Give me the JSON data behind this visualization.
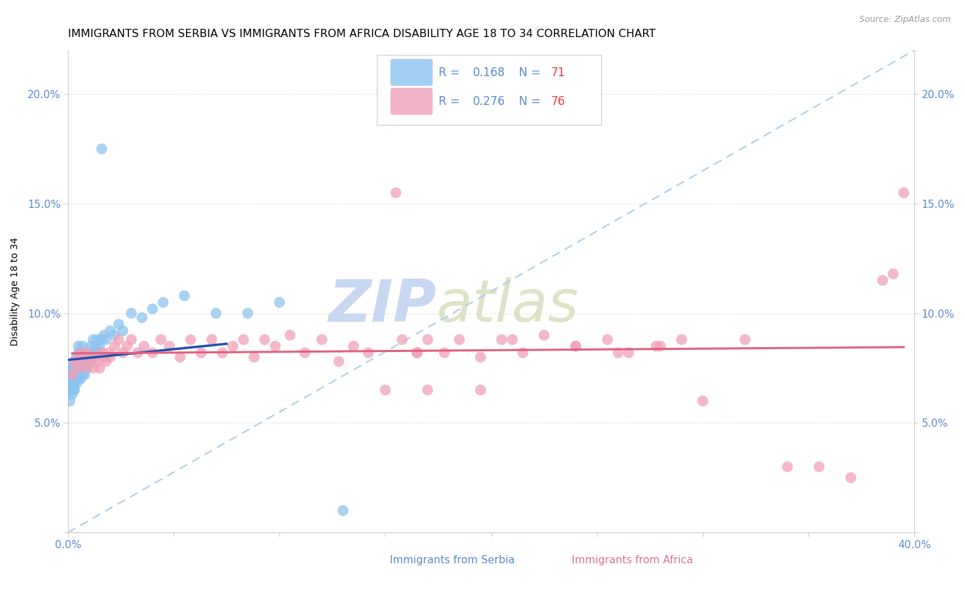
{
  "title": "IMMIGRANTS FROM SERBIA VS IMMIGRANTS FROM AFRICA DISABILITY AGE 18 TO 34 CORRELATION CHART",
  "source": "Source: ZipAtlas.com",
  "xlabel_label": "Immigrants from Serbia",
  "ylabel_label": "Disability Age 18 to 34",
  "legend_label2": "Immigrants from Africa",
  "xlim": [
    0.0,
    0.4
  ],
  "ylim": [
    0.0,
    0.22
  ],
  "x_tick_positions": [
    0.0,
    0.05,
    0.1,
    0.15,
    0.2,
    0.25,
    0.3,
    0.35,
    0.4
  ],
  "x_tick_labels": [
    "0.0%",
    "",
    "",
    "",
    "",
    "",
    "",
    "",
    "40.0%"
  ],
  "y_tick_positions": [
    0.0,
    0.05,
    0.1,
    0.15,
    0.2
  ],
  "y_tick_labels": [
    "",
    "5.0%",
    "10.0%",
    "15.0%",
    "20.0%"
  ],
  "color_serbia": "#8CC4F0",
  "color_africa": "#F0A0B8",
  "line_color_serbia": "#2050B0",
  "line_color_africa": "#E06080",
  "dashed_line_color": "#B0CCE8",
  "grid_color": "#E8E8E8",
  "R_serbia": 0.168,
  "N_serbia": 71,
  "R_africa": 0.276,
  "N_africa": 76,
  "serbia_x": [
    0.0,
    0.001,
    0.001,
    0.001,
    0.001,
    0.001,
    0.002,
    0.002,
    0.002,
    0.002,
    0.002,
    0.002,
    0.002,
    0.003,
    0.003,
    0.003,
    0.003,
    0.003,
    0.003,
    0.003,
    0.004,
    0.004,
    0.004,
    0.004,
    0.004,
    0.004,
    0.005,
    0.005,
    0.005,
    0.005,
    0.005,
    0.005,
    0.006,
    0.006,
    0.006,
    0.006,
    0.007,
    0.007,
    0.007,
    0.007,
    0.008,
    0.008,
    0.008,
    0.009,
    0.009,
    0.01,
    0.01,
    0.011,
    0.011,
    0.012,
    0.012,
    0.013,
    0.014,
    0.014,
    0.015,
    0.016,
    0.017,
    0.018,
    0.02,
    0.022,
    0.024,
    0.026,
    0.03,
    0.035,
    0.04,
    0.045,
    0.055,
    0.07,
    0.085,
    0.1,
    0.13
  ],
  "serbia_y": [
    0.075,
    0.06,
    0.065,
    0.07,
    0.072,
    0.068,
    0.063,
    0.067,
    0.07,
    0.073,
    0.075,
    0.068,
    0.072,
    0.065,
    0.068,
    0.07,
    0.072,
    0.075,
    0.078,
    0.065,
    0.068,
    0.07,
    0.073,
    0.075,
    0.078,
    0.08,
    0.07,
    0.072,
    0.075,
    0.078,
    0.082,
    0.085,
    0.07,
    0.073,
    0.078,
    0.082,
    0.072,
    0.075,
    0.08,
    0.085,
    0.072,
    0.078,
    0.082,
    0.075,
    0.08,
    0.078,
    0.082,
    0.08,
    0.085,
    0.082,
    0.088,
    0.085,
    0.082,
    0.088,
    0.085,
    0.088,
    0.09,
    0.088,
    0.092,
    0.09,
    0.095,
    0.092,
    0.1,
    0.098,
    0.102,
    0.105,
    0.108,
    0.1,
    0.1,
    0.105,
    0.01
  ],
  "serbia_outlier_x": [
    0.016
  ],
  "serbia_outlier_y": [
    0.175
  ],
  "africa_x": [
    0.002,
    0.003,
    0.004,
    0.005,
    0.006,
    0.007,
    0.008,
    0.009,
    0.01,
    0.011,
    0.012,
    0.013,
    0.014,
    0.015,
    0.016,
    0.017,
    0.018,
    0.019,
    0.02,
    0.022,
    0.024,
    0.026,
    0.028,
    0.03,
    0.033,
    0.036,
    0.04,
    0.044,
    0.048,
    0.053,
    0.058,
    0.063,
    0.068,
    0.073,
    0.078,
    0.083,
    0.088,
    0.093,
    0.098,
    0.105,
    0.112,
    0.12,
    0.128,
    0.135,
    0.142,
    0.15,
    0.158,
    0.165,
    0.17,
    0.178,
    0.185,
    0.195,
    0.205,
    0.215,
    0.225,
    0.24,
    0.255,
    0.265,
    0.278,
    0.29,
    0.155,
    0.165,
    0.17,
    0.195,
    0.21,
    0.24,
    0.26,
    0.28,
    0.3,
    0.32,
    0.34,
    0.355,
    0.37,
    0.385,
    0.39,
    0.395
  ],
  "africa_y": [
    0.072,
    0.078,
    0.075,
    0.08,
    0.082,
    0.078,
    0.075,
    0.082,
    0.08,
    0.078,
    0.075,
    0.08,
    0.078,
    0.075,
    0.082,
    0.08,
    0.078,
    0.082,
    0.08,
    0.085,
    0.088,
    0.082,
    0.085,
    0.088,
    0.082,
    0.085,
    0.082,
    0.088,
    0.085,
    0.08,
    0.088,
    0.082,
    0.088,
    0.082,
    0.085,
    0.088,
    0.08,
    0.088,
    0.085,
    0.09,
    0.082,
    0.088,
    0.078,
    0.085,
    0.082,
    0.065,
    0.088,
    0.082,
    0.088,
    0.082,
    0.088,
    0.08,
    0.088,
    0.082,
    0.09,
    0.085,
    0.088,
    0.082,
    0.085,
    0.088,
    0.155,
    0.082,
    0.065,
    0.065,
    0.088,
    0.085,
    0.082,
    0.085,
    0.06,
    0.088,
    0.03,
    0.03,
    0.025,
    0.115,
    0.118,
    0.155
  ],
  "watermark_top": "ZIP",
  "watermark_bottom": "atlas",
  "watermark_color": "#C8D8F0",
  "background_color": "#FFFFFF",
  "tick_color": "#5B8BD0",
  "title_fontsize": 11.5,
  "axis_label_fontsize": 10,
  "legend_R_color": "#5B8BD0",
  "legend_N_color": "#E84040"
}
